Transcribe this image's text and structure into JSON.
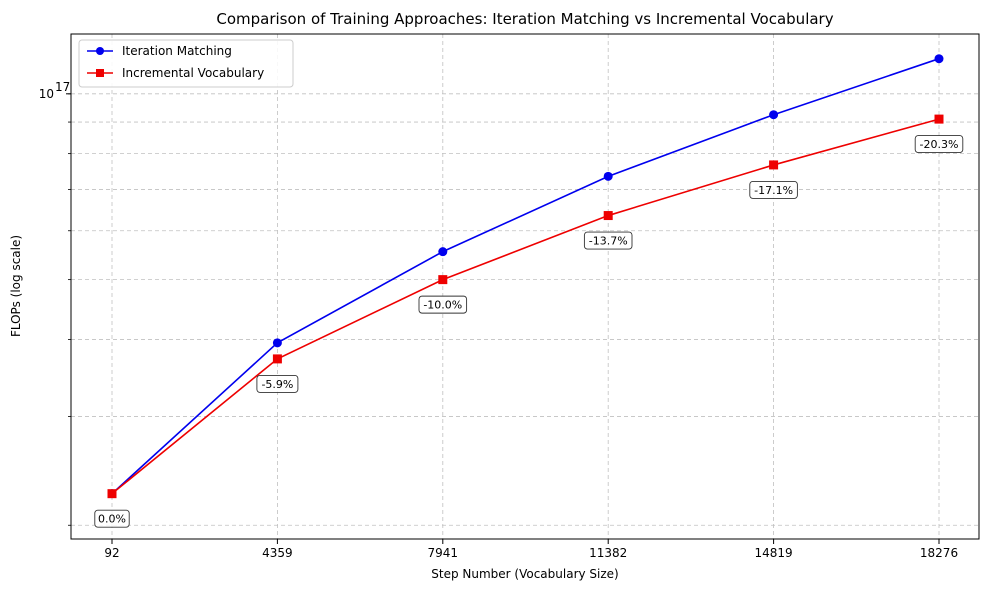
{
  "chart_data": {
    "type": "line",
    "title": "Comparison of Training Approaches: Iteration Matching vs Incremental Vocabulary",
    "xlabel": "Step Number (Vocabulary Size)",
    "ylabel": "FLOPs (log scale)",
    "y_scale": "log",
    "ylim": [
      1.9e+16,
      1.25e+17
    ],
    "y_tick_label": {
      "base": "10",
      "exp": "17",
      "value": 1e+17
    },
    "y_minor_ticks": [
      2e+16,
      3e+16,
      4e+16,
      5e+16,
      6e+16,
      7e+16,
      8e+16,
      9e+16,
      1e+17
    ],
    "grid": true,
    "legend_position": "top-left",
    "categories": [
      "92",
      "4359",
      "7941",
      "11382",
      "14819",
      "18276"
    ],
    "series": [
      {
        "name": "Iteration Matching",
        "color": "#0000ee",
        "marker": "circle",
        "values": [
          2.25e+16,
          3.95e+16,
          5.55e+16,
          7.35e+16,
          9.25e+16,
          1.14e+17
        ]
      },
      {
        "name": "Incremental Vocabulary",
        "color": "#ee0000",
        "marker": "square",
        "values": [
          2.25e+16,
          3.72e+16,
          5e+16,
          6.35e+16,
          7.67e+16,
          9.1e+16
        ]
      }
    ],
    "annotations": [
      "0.0%",
      "-5.9%",
      "-10.0%",
      "-13.7%",
      "-17.1%",
      "-20.3%"
    ]
  }
}
